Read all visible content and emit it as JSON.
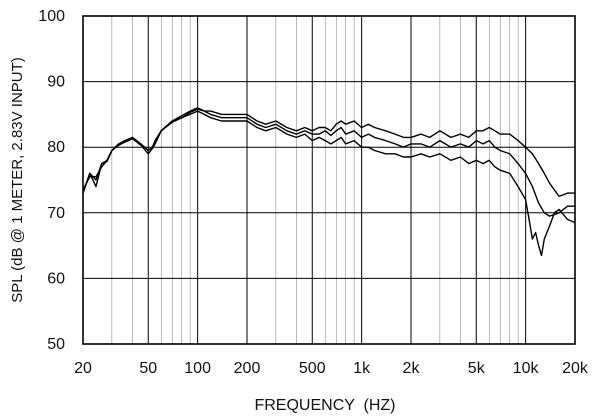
{
  "chart_data": {
    "type": "line",
    "title": "",
    "xlabel": "FREQUENCY  (HZ)",
    "ylabel": "SPL (dB @ 1 METER, 2.83V INPUT)",
    "x_scale": "log",
    "xlim": [
      20,
      20000
    ],
    "ylim": [
      50,
      100
    ],
    "grid": true,
    "x_ticks": [
      20,
      50,
      100,
      200,
      500,
      1000,
      2000,
      5000,
      10000,
      20000
    ],
    "x_tick_labels": [
      "20",
      "50",
      "100",
      "200",
      "500",
      "1k",
      "2k",
      "5k",
      "10k",
      "20k"
    ],
    "y_ticks": [
      50,
      60,
      70,
      80,
      90,
      100
    ],
    "y_tick_labels": [
      "50",
      "60",
      "70",
      "80",
      "90",
      "100"
    ],
    "line_color": "#000000",
    "series": [
      {
        "x": [
          20,
          22,
          24,
          26,
          28,
          30,
          33,
          36,
          40,
          45,
          50,
          53,
          55,
          60,
          70,
          80,
          90,
          100,
          110,
          120,
          140,
          160,
          180,
          200,
          230,
          260,
          300,
          350,
          400,
          450,
          500,
          550,
          600,
          650,
          700,
          750,
          800,
          900,
          1000,
          1100,
          1200,
          1400,
          1600,
          1800,
          2000,
          2300,
          2600,
          3000,
          3500,
          4000,
          4500,
          5000,
          5500,
          6000,
          6500,
          7000,
          8000,
          9000,
          10000,
          11000,
          12000,
          13000,
          14000,
          16000,
          18000,
          20000
        ],
        "y": [
          73,
          76,
          75,
          77.5,
          78,
          79.5,
          80.5,
          80.8,
          81.5,
          80.5,
          79.5,
          80,
          81,
          82.5,
          84,
          84.8,
          85.5,
          86,
          85.5,
          85.5,
          85,
          85,
          85,
          85,
          84,
          83.5,
          84,
          83,
          82.5,
          83,
          82.5,
          83,
          83,
          82.5,
          83.5,
          84,
          83.5,
          84,
          83,
          83.5,
          83,
          82.5,
          82,
          81.5,
          81.5,
          82,
          81.5,
          82.5,
          81.5,
          82,
          81.5,
          82.5,
          82.5,
          83,
          82.5,
          82,
          82,
          81,
          80,
          79,
          77.5,
          76,
          74.5,
          72.5,
          73,
          73
        ]
      },
      {
        "x": [
          20,
          22,
          24,
          26,
          28,
          30,
          33,
          36,
          40,
          45,
          50,
          53,
          55,
          60,
          70,
          80,
          90,
          100,
          110,
          120,
          140,
          160,
          180,
          200,
          230,
          260,
          300,
          350,
          400,
          450,
          500,
          550,
          600,
          650,
          700,
          750,
          800,
          900,
          1000,
          1100,
          1200,
          1400,
          1600,
          1800,
          2000,
          2300,
          2600,
          3000,
          3500,
          4000,
          4500,
          5000,
          5500,
          6000,
          6500,
          7000,
          8000,
          9000,
          10000,
          11000,
          12000,
          13000,
          14000,
          16000,
          18000,
          20000
        ],
        "y": [
          73.5,
          75.5,
          75.5,
          77,
          78,
          79.5,
          80.5,
          81,
          81.5,
          80.5,
          79.5,
          80,
          80.8,
          82.5,
          83.8,
          84.5,
          85.3,
          85.8,
          85.5,
          85,
          84.5,
          84.5,
          84.5,
          84.5,
          83.5,
          83,
          83.5,
          82.5,
          82,
          82.5,
          82,
          82,
          82.5,
          81.8,
          82.5,
          83,
          82,
          82.5,
          81.5,
          82,
          81.5,
          81,
          80.5,
          80,
          80.5,
          80.5,
          80,
          81,
          80,
          80.5,
          80,
          81,
          80.5,
          81,
          80,
          79.5,
          79,
          77.5,
          76,
          74,
          71.5,
          70,
          69.5,
          70,
          71,
          71
        ]
      },
      {
        "x": [
          20,
          22,
          24,
          26,
          28,
          30,
          33,
          36,
          40,
          45,
          50,
          53,
          55,
          60,
          70,
          80,
          90,
          100,
          110,
          120,
          140,
          160,
          180,
          200,
          230,
          260,
          300,
          350,
          400,
          450,
          500,
          550,
          600,
          650,
          700,
          750,
          800,
          900,
          1000,
          1100,
          1200,
          1400,
          1600,
          1800,
          2000,
          2300,
          2600,
          3000,
          3500,
          4000,
          4500,
          5000,
          5500,
          6000,
          6500,
          7000,
          8000,
          9000,
          10000,
          10500,
          11000,
          11500,
          12000,
          12500,
          13000,
          14000,
          15000,
          16000,
          18000,
          20000
        ],
        "y": [
          73,
          76,
          74,
          77.5,
          77.8,
          79.5,
          80.3,
          80.8,
          81.3,
          80.3,
          79,
          79.8,
          80.5,
          82.5,
          84,
          84.5,
          85,
          85.5,
          85,
          84.5,
          84,
          84,
          84,
          84,
          83,
          82.5,
          83,
          82,
          81.5,
          82,
          81,
          81.5,
          81,
          80.5,
          81,
          81.5,
          80.5,
          81,
          80,
          80,
          79.5,
          79,
          79,
          78.5,
          78.5,
          79,
          78.5,
          79,
          78,
          78.5,
          77.5,
          78,
          77.5,
          78,
          77,
          76.5,
          76,
          74,
          72,
          69,
          66,
          67,
          65,
          63.5,
          66,
          68,
          70,
          70.5,
          69,
          68.5
        ]
      }
    ]
  }
}
